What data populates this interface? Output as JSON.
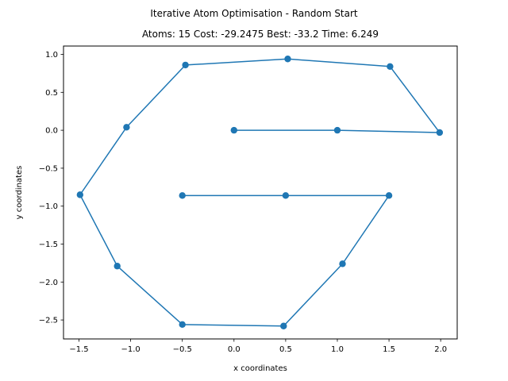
{
  "figure": {
    "suptitle": "Iterative Atom Optimisation - Random Start",
    "title": "Atoms: 15 Cost: -29.2475 Best: -33.2 Time: 6.249"
  },
  "chart_data": {
    "type": "line",
    "markers": true,
    "title": "Atoms: 15 Cost: -29.2475 Best: -33.2 Time: 6.249",
    "xlabel": "x coordinates",
    "ylabel": "y coordinates",
    "xlim": [
      -1.65,
      2.16
    ],
    "ylim": [
      -2.75,
      1.11
    ],
    "xticks": [
      -1.5,
      -1.0,
      -0.5,
      0.0,
      0.5,
      1.0,
      1.5,
      2.0
    ],
    "xtick_labels": [
      "−1.5",
      "−1.0",
      "−0.5",
      "0.0",
      "0.5",
      "1.0",
      "1.5",
      "2.0"
    ],
    "yticks": [
      1.0,
      0.5,
      0.0,
      -0.5,
      -1.0,
      -1.5,
      -2.0,
      -2.5
    ],
    "ytick_labels": [
      "1.0",
      "0.5",
      "0.0",
      "−0.5",
      "−1.0",
      "−1.5",
      "−2.0",
      "−2.5"
    ],
    "grid": false,
    "color": "#1f77b4",
    "series": [
      {
        "x": [
          0.0,
          1.0,
          1.99,
          1.51,
          0.52,
          -0.47,
          -1.04,
          -1.49,
          -1.13,
          -0.5,
          0.48,
          1.05,
          1.5,
          0.5,
          -0.5
        ],
        "y": [
          0.0,
          0.0,
          -0.03,
          0.84,
          0.94,
          0.86,
          0.04,
          -0.85,
          -1.79,
          -2.56,
          -2.58,
          -1.76,
          -0.86,
          -0.86,
          -0.86
        ]
      }
    ]
  }
}
